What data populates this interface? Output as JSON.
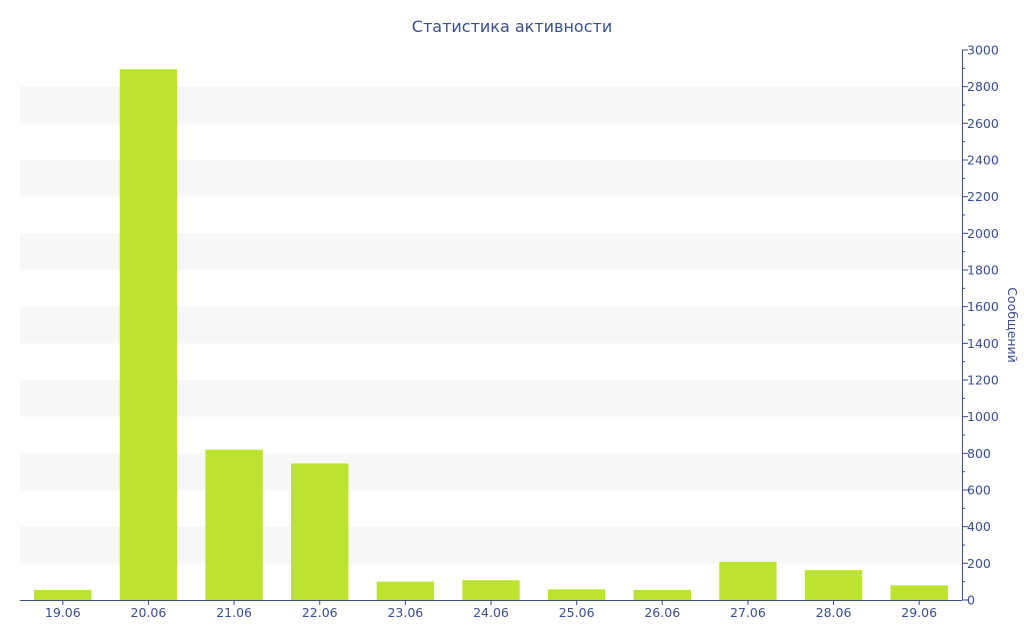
{
  "colors": {
    "bar": "#bce32e",
    "axis": "#3a4f8c",
    "text": "#3a4f8c",
    "band": "#f7f7f7",
    "background": "#ffffff"
  },
  "chart_data": {
    "type": "bar",
    "title": "Статистика активности",
    "xlabel": "",
    "ylabel": "Сообщений",
    "categories": [
      "19.06",
      "20.06",
      "21.06",
      "22.06",
      "23.06",
      "24.06",
      "25.06",
      "26.06",
      "27.06",
      "28.06",
      "29.06"
    ],
    "values": [
      55,
      2895,
      820,
      745,
      100,
      108,
      58,
      55,
      208,
      163,
      80
    ],
    "ylim": [
      0,
      3000
    ],
    "yticks": [
      "0",
      "200",
      "400",
      "600",
      "800",
      "1000",
      "1200",
      "1400",
      "1600",
      "1800",
      "2000",
      "2200",
      "2400",
      "2600",
      "2800",
      "3000"
    ],
    "yaxis_position": "right",
    "grid": "alternating-bands",
    "legend": "none"
  }
}
